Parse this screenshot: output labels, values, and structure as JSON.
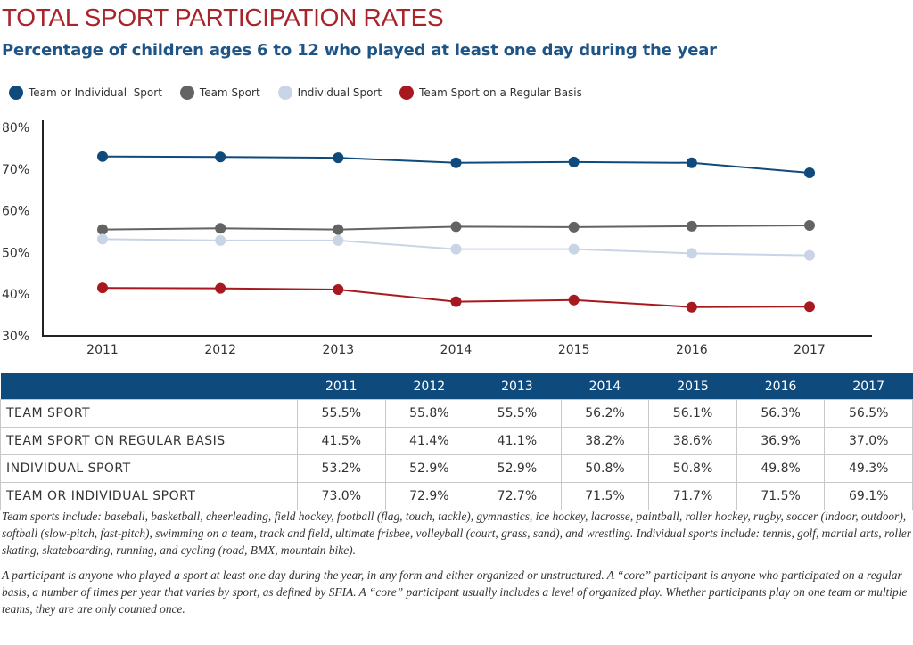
{
  "title": "TOTAL SPORT PARTICIPATION RATES",
  "subtitle": "Percentage of children ages 6 to 12 who played at least one day during the year",
  "chart_data": {
    "type": "line",
    "title": "TOTAL SPORT PARTICIPATION RATES",
    "subtitle": "Percentage of children ages 6 to 12 who played at least one day during the year",
    "xlabel": "",
    "ylabel": "",
    "x": [
      "2011",
      "2012",
      "2013",
      "2014",
      "2015",
      "2016",
      "2017"
    ],
    "ylim": [
      30,
      80
    ],
    "yticks": [
      30,
      40,
      50,
      60,
      70,
      80
    ],
    "ytick_labels": [
      "30%",
      "40%",
      "50%",
      "60%",
      "70%",
      "80%"
    ],
    "grid": false,
    "legend_position": "top-left",
    "series": [
      {
        "name": "Team or Individual  Sport",
        "color": "#0f4a7d",
        "values": [
          73.0,
          72.9,
          72.7,
          71.5,
          71.7,
          71.5,
          69.1
        ]
      },
      {
        "name": "Team Sport",
        "color": "#636363",
        "values": [
          55.5,
          55.8,
          55.5,
          56.2,
          56.1,
          56.3,
          56.5
        ]
      },
      {
        "name": "Individual Sport",
        "color": "#c9d4e6",
        "values": [
          53.2,
          52.9,
          52.9,
          50.8,
          50.8,
          49.8,
          49.3
        ]
      },
      {
        "name": "Team Sport on a Regular Basis",
        "color": "#a8191f",
        "values": [
          41.5,
          41.4,
          41.1,
          38.2,
          38.6,
          36.9,
          37.0
        ]
      }
    ]
  },
  "table": {
    "header": [
      "",
      "2011",
      "2012",
      "2013",
      "2014",
      "2015",
      "2016",
      "2017"
    ],
    "rows": [
      {
        "label": "TEAM SPORT",
        "values": [
          "55.5%",
          "55.8%",
          "55.5%",
          "56.2%",
          "56.1%",
          "56.3%",
          "56.5%"
        ]
      },
      {
        "label": "TEAM SPORT ON REGULAR BASIS",
        "values": [
          "41.5%",
          "41.4%",
          "41.1%",
          "38.2%",
          "38.6%",
          "36.9%",
          "37.0%"
        ]
      },
      {
        "label": "INDIVIDUAL SPORT",
        "values": [
          "53.2%",
          "52.9%",
          "52.9%",
          "50.8%",
          "50.8%",
          "49.8%",
          "49.3%"
        ]
      },
      {
        "label": "TEAM OR INDIVIDUAL SPORT",
        "values": [
          "73.0%",
          "72.9%",
          "72.7%",
          "71.5%",
          "71.7%",
          "71.5%",
          "69.1%"
        ]
      }
    ]
  },
  "notes": [
    "Team sports include: baseball, basketball, cheerleading, field hockey, football (flag, touch, tackle), gymnastics, ice hockey, lacrosse, paintball, roller hockey, rugby, soccer (indoor, outdoor), softball (slow-pitch, fast-pitch), swimming on a team, track and field, ultimate frisbee, volleyball (court, grass, sand), and wrestling. Individual sports include: tennis, golf, martial arts, roller skating, skateboarding, running, and cycling (road, BMX, mountain bike).",
    "A participant is anyone who played a sport at least one day during the year, in any form and either organized or unstructured. A “core” participant is anyone who participated on a regular basis, a number of times per year that varies by sport, as defined by SFIA. A “core” participant usually includes a level of organized play. Whether participants play on one team or multiple teams, they are are only counted once."
  ]
}
